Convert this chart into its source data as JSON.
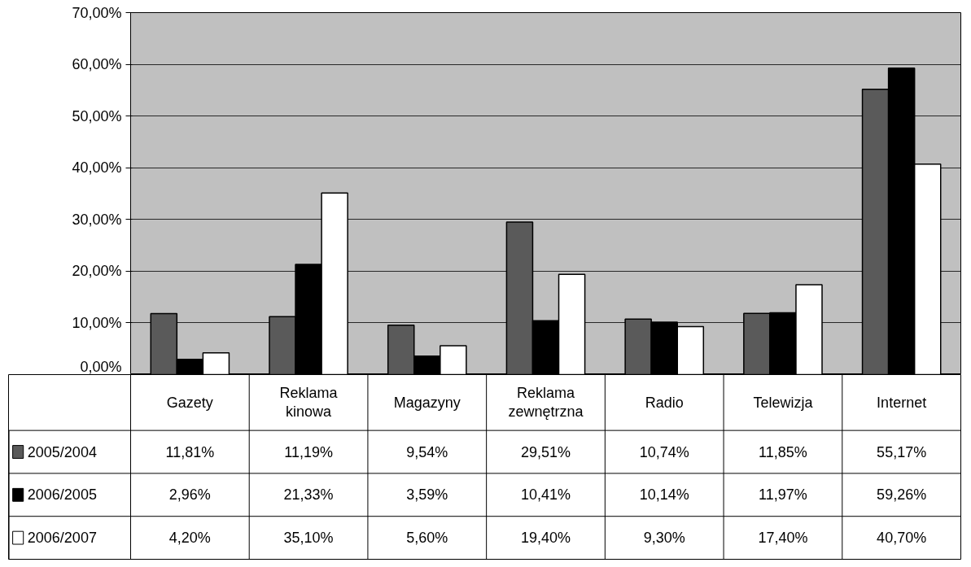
{
  "chart_data": {
    "type": "bar",
    "categories": [
      "Gazety",
      "Reklama kinowa",
      "Magazyny",
      "Reklama zewnętrzna",
      "Radio",
      "Telewizja",
      "Internet"
    ],
    "series": [
      {
        "name": "2005/2004",
        "color": "#5a5a5a",
        "values": [
          11.81,
          11.19,
          9.54,
          29.51,
          10.74,
          11.85,
          55.17
        ],
        "value_labels": [
          "11,81%",
          "11,19%",
          "9,54%",
          "29,51%",
          "10,74%",
          "11,85%",
          "55,17%"
        ]
      },
      {
        "name": "2006/2005",
        "color": "#000000",
        "values": [
          2.96,
          21.33,
          3.59,
          10.41,
          10.14,
          11.97,
          59.26
        ],
        "value_labels": [
          "2,96%",
          "21,33%",
          "3,59%",
          "10,41%",
          "10,14%",
          "11,97%",
          "59,26%"
        ]
      },
      {
        "name": "2006/2007",
        "color": "#ffffff",
        "values": [
          4.2,
          35.1,
          5.6,
          19.4,
          9.3,
          17.4,
          40.7
        ],
        "value_labels": [
          "4,20%",
          "35,10%",
          "5,60%",
          "19,40%",
          "9,30%",
          "17,40%",
          "40,70%"
        ]
      }
    ],
    "ylim": [
      0,
      70
    ],
    "yticks": [
      {
        "value": 0,
        "label": "0,00%"
      },
      {
        "value": 10,
        "label": "10,00%"
      },
      {
        "value": 20,
        "label": "20,00%"
      },
      {
        "value": 30,
        "label": "30,00%"
      },
      {
        "value": 40,
        "label": "40,00%"
      },
      {
        "value": 50,
        "label": "50,00%"
      },
      {
        "value": 60,
        "label": "60,00%"
      },
      {
        "value": 70,
        "label": "70,00%"
      }
    ],
    "grid": "y",
    "legend": "bottom left"
  }
}
